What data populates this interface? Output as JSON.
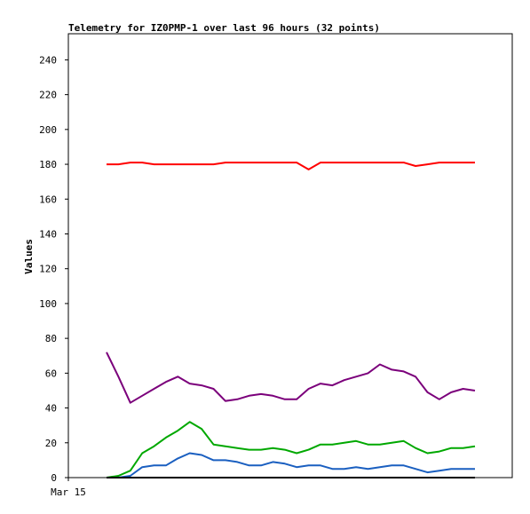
{
  "chart_data": {
    "type": "line",
    "title": "Telemetry for IZ0PMP-1 over last 96 hours (32 points)",
    "xlabel": "",
    "ylabel": "Values",
    "ylim": [
      0,
      255
    ],
    "yticks": [
      0,
      20,
      40,
      60,
      80,
      100,
      120,
      140,
      160,
      180,
      200,
      220,
      240
    ],
    "xtick_labels": [
      "Mar 15"
    ],
    "grid": false,
    "legend": "none",
    "x": [
      1,
      2,
      3,
      4,
      5,
      6,
      7,
      8,
      9,
      10,
      11,
      12,
      13,
      14,
      15,
      16,
      17,
      18,
      19,
      20,
      21,
      22,
      23,
      24,
      25,
      26,
      27,
      28,
      29,
      30,
      31,
      32
    ],
    "series": [
      {
        "color": "#ff0000",
        "values": [
          180,
          180,
          181,
          181,
          180,
          180,
          180,
          180,
          180,
          180,
          181,
          181,
          181,
          181,
          181,
          181,
          181,
          177,
          181,
          181,
          181,
          181,
          181,
          181,
          181,
          181,
          179,
          180,
          181,
          181,
          181,
          181
        ]
      },
      {
        "color": "#7b007b",
        "values": [
          72,
          58,
          43,
          47,
          51,
          55,
          58,
          54,
          53,
          51,
          44,
          45,
          47,
          48,
          47,
          45,
          45,
          51,
          54,
          53,
          56,
          58,
          60,
          65,
          62,
          61,
          58,
          49,
          45,
          49,
          51,
          50
        ]
      },
      {
        "color": "#00a800",
        "values": [
          0,
          1,
          4,
          14,
          18,
          23,
          27,
          32,
          28,
          19,
          18,
          17,
          16,
          16,
          17,
          16,
          14,
          16,
          19,
          19,
          20,
          21,
          19,
          19,
          20,
          21,
          17,
          14,
          15,
          17,
          17,
          18
        ]
      },
      {
        "color": "#1a5fc0",
        "values": [
          0,
          0,
          1,
          6,
          7,
          7,
          11,
          14,
          13,
          10,
          10,
          9,
          7,
          7,
          9,
          8,
          6,
          7,
          7,
          5,
          5,
          6,
          5,
          6,
          7,
          7,
          5,
          3,
          4,
          5,
          5,
          5
        ]
      },
      {
        "color": "#000000",
        "values": [
          0,
          0,
          0,
          0,
          0,
          0,
          0,
          0,
          0,
          0,
          0,
          0,
          0,
          0,
          0,
          0,
          0,
          0,
          0,
          0,
          0,
          0,
          0,
          0,
          0,
          0,
          0,
          0,
          0,
          0,
          0,
          0
        ]
      }
    ]
  }
}
